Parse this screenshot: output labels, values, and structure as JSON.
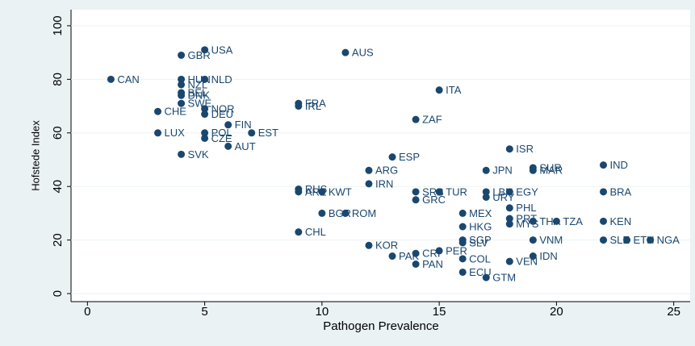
{
  "chart_data": {
    "type": "scatter",
    "x_label": "Pathogen Prevalence",
    "y_label": "Hofstede Index",
    "xlim": [
      -0.7,
      25.7
    ],
    "ylim": [
      -3,
      106
    ],
    "xticks": [
      0,
      5,
      10,
      15,
      20,
      25
    ],
    "yticks": [
      0,
      20,
      40,
      60,
      80,
      100
    ],
    "grid": true,
    "color": "#1a476f",
    "labels": [
      "CAN",
      "USA",
      "GBR",
      "AUS",
      "HUN",
      "NLD",
      "NZL",
      "BEL",
      "DNK",
      "SWE",
      "CHE",
      "NOR",
      "DEU",
      "FRA",
      "IRL",
      "ITA",
      "ZAF",
      "FIN",
      "LUX",
      "POL",
      "EST",
      "CZE",
      "AUT",
      "SVK",
      "ESP",
      "ISR",
      "IND",
      "SUR",
      "MAR",
      "JPN",
      "ARG",
      "IRN",
      "RUS",
      "ARE",
      "KWT",
      "BRA",
      "SRB",
      "TUR",
      "LBN",
      "EGY",
      "URY",
      "GRC",
      "PHL",
      "MEX",
      "BGR",
      "ROM",
      "PRT",
      "MYS",
      "THA",
      "TZA",
      "KEN",
      "HKG",
      "CHL",
      "SGP",
      "SLV",
      "VNM",
      "SLE",
      "ETH",
      "NGA",
      "KOR",
      "PER",
      "CRI",
      "PAK",
      "IDN",
      "COL",
      "VEN",
      "PAN",
      "ECU",
      "GTM"
    ],
    "x": [
      1,
      5,
      4,
      11,
      4,
      5,
      4,
      4,
      4,
      4,
      3,
      5,
      5,
      9,
      9,
      15,
      14,
      6,
      3,
      5,
      7,
      5,
      6,
      4,
      13,
      18,
      22,
      19,
      19,
      17,
      12,
      12,
      9,
      9,
      10,
      22,
      14,
      15,
      17,
      18,
      17,
      14,
      18,
      16,
      10,
      11,
      18,
      18,
      19,
      20,
      22,
      16,
      9,
      16,
      16,
      19,
      22,
      23,
      24,
      12,
      15,
      14,
      13,
      19,
      16,
      18,
      14,
      16,
      17
    ],
    "values": [
      80,
      91,
      89,
      90,
      80,
      80,
      78,
      75,
      74,
      71,
      68,
      69,
      67,
      71,
      70,
      76,
      65,
      63,
      60,
      60,
      60,
      58,
      55,
      52,
      51,
      54,
      48,
      47,
      46,
      46,
      46,
      41,
      39,
      38,
      38,
      38,
      38,
      38,
      38,
      38,
      36,
      35,
      32,
      30,
      30,
      30,
      28,
      26,
      27,
      27,
      27,
      25,
      23,
      20,
      19,
      20,
      20,
      20,
      20,
      18,
      16,
      15,
      14,
      14,
      13,
      12,
      11,
      8,
      6
    ]
  }
}
